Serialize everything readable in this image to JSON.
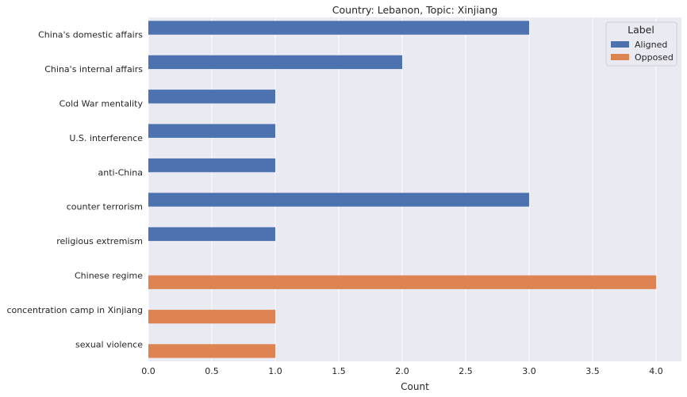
{
  "chart_data": {
    "type": "bar",
    "orientation": "horizontal",
    "title": "Country: Lebanon, Topic: Xinjiang",
    "xlabel": "Count",
    "ylabel": "",
    "xlim": [
      0,
      4.2
    ],
    "xticks": [
      "0.0",
      "0.5",
      "1.0",
      "1.5",
      "2.0",
      "2.5",
      "3.0",
      "3.5",
      "4.0"
    ],
    "grid": true,
    "categories": [
      "China's domestic affairs",
      "China's internal affairs",
      "Cold War mentality",
      "U.S. interference",
      "anti-China",
      "counter terrorism",
      "religious extremism",
      "Chinese regime",
      "concentration camp in Xinjiang",
      "sexual violence"
    ],
    "series": [
      {
        "name": "Aligned",
        "color": "#4c72b0",
        "values": [
          3,
          2,
          1,
          1,
          1,
          3,
          1,
          0,
          0,
          0
        ]
      },
      {
        "name": "Opposed",
        "color": "#dd8452",
        "values": [
          0,
          0,
          0,
          0,
          0,
          0,
          0,
          4,
          1,
          1
        ]
      }
    ],
    "legend": {
      "title": "Label",
      "position": "top-right"
    }
  }
}
